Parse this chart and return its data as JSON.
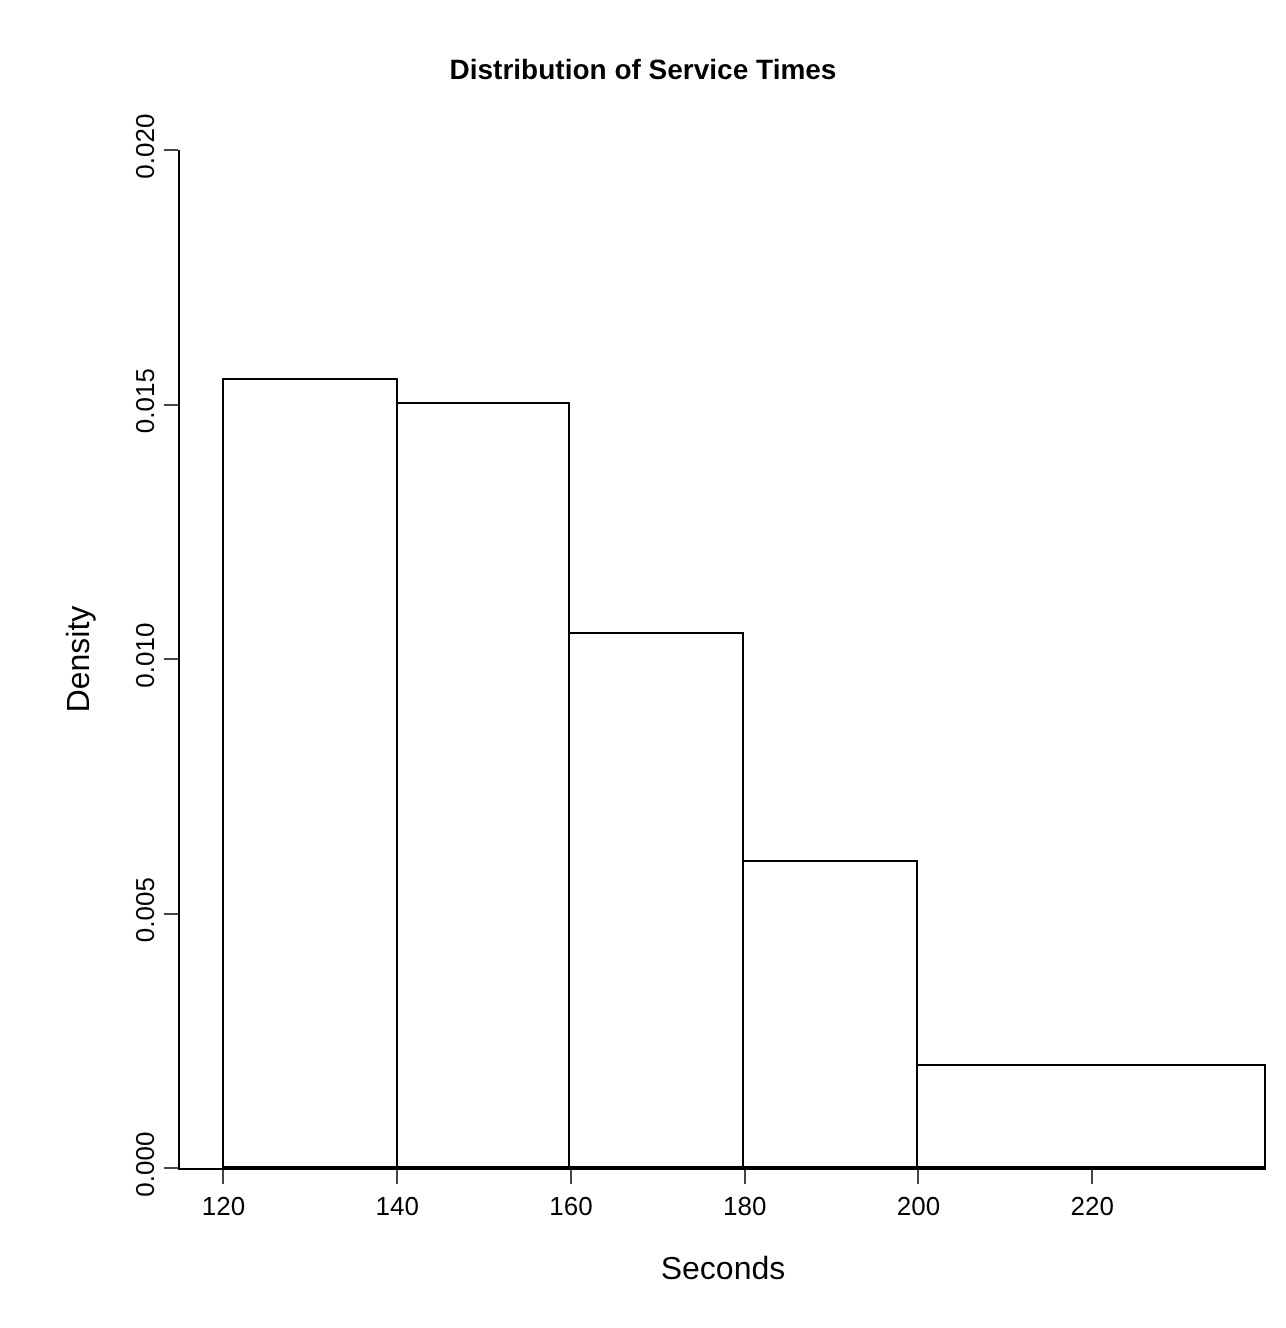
{
  "chart_data": {
    "type": "histogram",
    "title": "Distribution of Service Times",
    "xlabel": "Seconds",
    "ylabel": "Density",
    "bins": [
      120,
      140,
      160,
      180,
      200,
      240
    ],
    "values": [
      0.0155,
      0.015,
      0.0105,
      0.006,
      0.002
    ],
    "color": "#ffffff",
    "xlim": [
      115,
      240
    ],
    "xticks": [
      120,
      140,
      160,
      180,
      200,
      220
    ],
    "ylim": [
      0,
      0.02
    ],
    "yticks": [
      {
        "value": 0,
        "label": "0.000"
      },
      {
        "value": 0.005,
        "label": "0.005"
      },
      {
        "value": 0.01,
        "label": "0.010"
      },
      {
        "value": 0.015,
        "label": "0.015"
      },
      {
        "value": 0.02,
        "label": "0.020"
      }
    ]
  }
}
